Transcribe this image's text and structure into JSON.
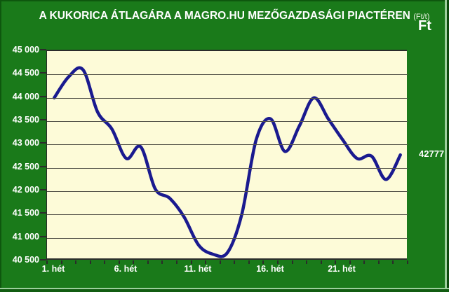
{
  "header": {
    "title": "A KUKORICA ÁTLAGÁRA A MAGRO.HU MEZŐGAZDASÁGI PIACTÉREN",
    "unit": "(Ft/t)",
    "currency": "Ft"
  },
  "chart_data": {
    "type": "line",
    "title": "A KUKORICA ÁTLAGÁRA A MAGRO.HU MEZŐGAZDASÁGI PIACTÉREN (Ft/t)",
    "xlabel": "hét",
    "ylabel": "Ft",
    "weeks": 25,
    "x": [
      1,
      2,
      3,
      4,
      5,
      6,
      7,
      8,
      9,
      10,
      11,
      12,
      13,
      14,
      15,
      16,
      17,
      18,
      19,
      20,
      21,
      22,
      23,
      24,
      25
    ],
    "values": [
      44000,
      44450,
      44600,
      43700,
      43330,
      42700,
      42950,
      42050,
      41850,
      41450,
      40850,
      40650,
      40680,
      41500,
      43100,
      43550,
      42850,
      43400,
      44000,
      43550,
      43100,
      42700,
      42750,
      42250,
      42777
    ],
    "ylim": [
      40500,
      45000
    ],
    "ytick_step": 500,
    "ytick_labels": [
      "45 000",
      "44 500",
      "44 000",
      "43 500",
      "43 000",
      "42 500",
      "42 000",
      "41 500",
      "41 000",
      "40 500"
    ],
    "xtick_labels": [
      {
        "week": 1,
        "label": "1. hét"
      },
      {
        "week": 6,
        "label": "6. hét"
      },
      {
        "week": 11,
        "label": "11. hét"
      },
      {
        "week": 16,
        "label": "16. hét"
      },
      {
        "week": 21,
        "label": "21. hét"
      }
    ],
    "last_value_label": "42777",
    "grid": true,
    "legend": "none",
    "smoothed": true
  },
  "colors": {
    "background_green": "#1a7a1a",
    "plot_background": "#fdfbd8",
    "line_navy": "#1a1a8f",
    "gridline": "#55544a",
    "axis_dark": "#2b2b2b",
    "text_white": "#ffffff"
  }
}
